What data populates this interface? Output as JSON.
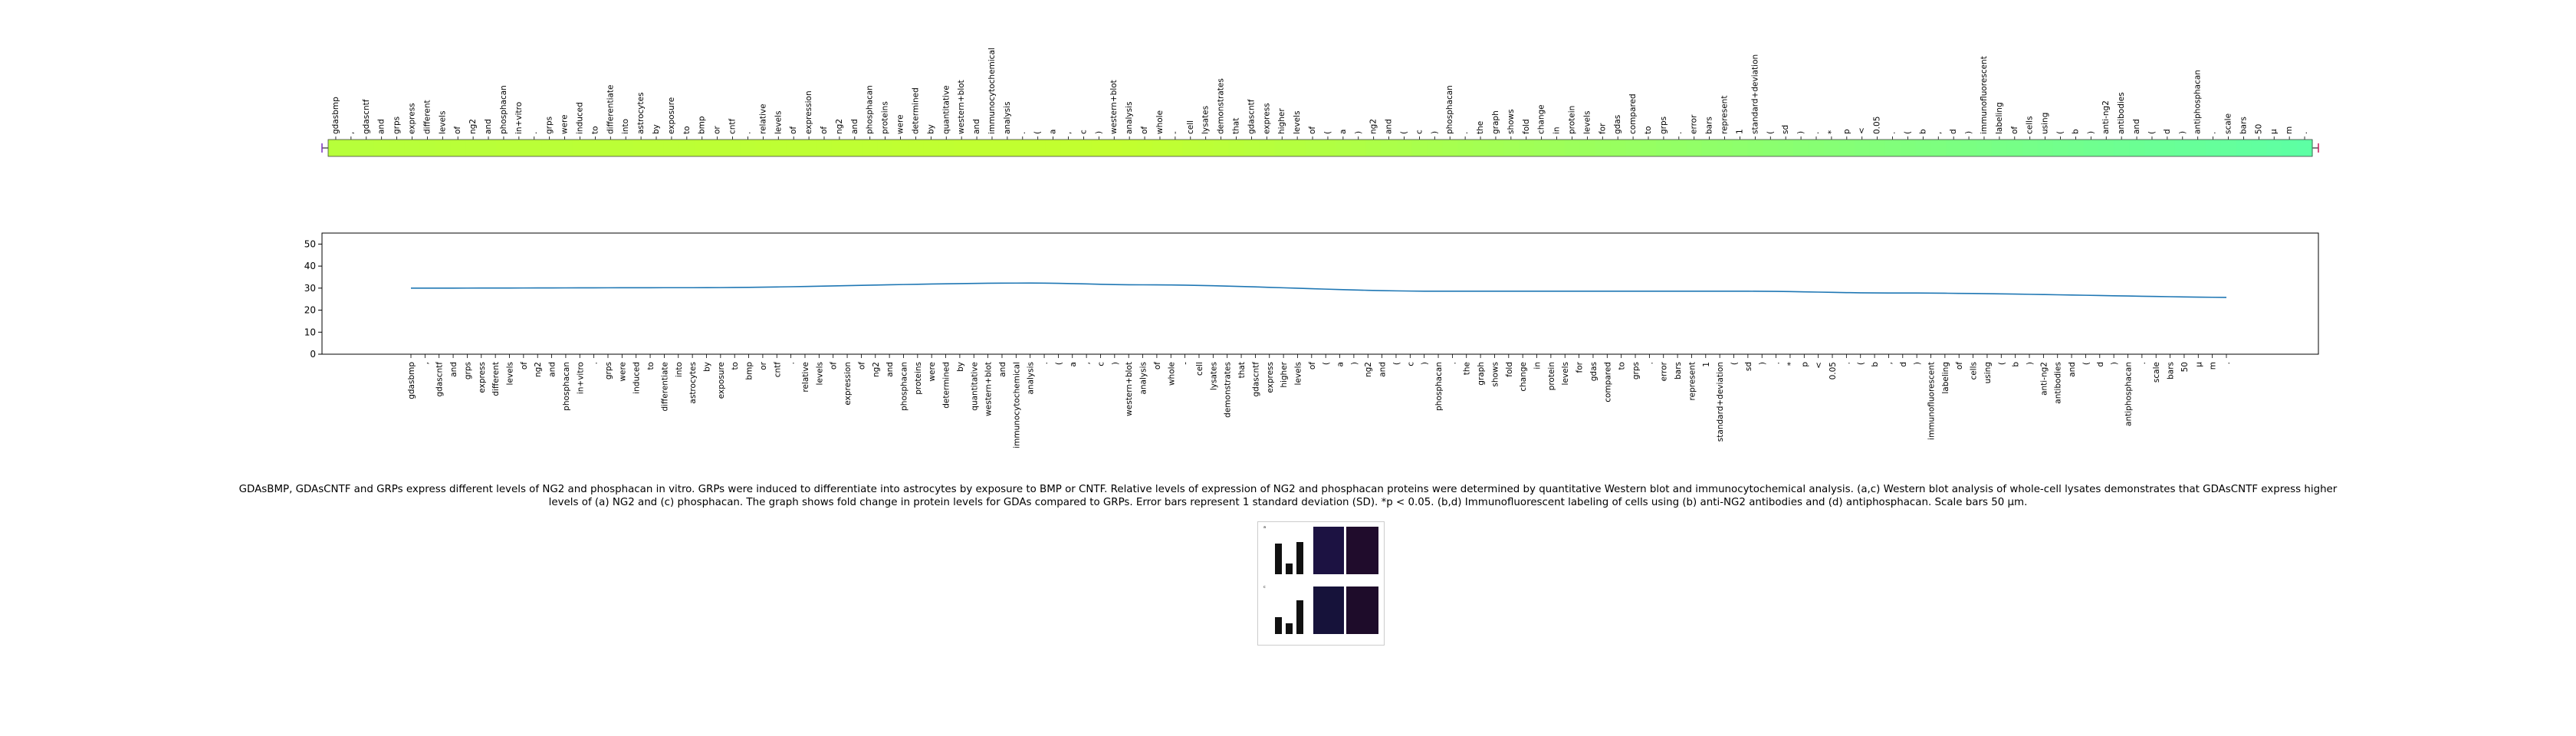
{
  "chart_data": [
    {
      "type": "heatmap",
      "x_tokens": [
        "gdasbmp",
        ",",
        "gdascntf",
        "and",
        "grps",
        "express",
        "different",
        "levels",
        "of",
        "ng2",
        "and",
        "phosphacan",
        "in+vitro",
        ".",
        "grps",
        "were",
        "induced",
        "to",
        "differentiate",
        "into",
        "astrocytes",
        "by",
        "exposure",
        "to",
        "bmp",
        "or",
        "cntf",
        ".",
        "relative",
        "levels",
        "of",
        "expression",
        "of",
        "ng2",
        "and",
        "phosphacan",
        "proteins",
        "were",
        "determined",
        "by",
        "quantitative",
        "western+blot",
        "and",
        "immunocytochemical",
        "analysis",
        ".",
        "(",
        "a",
        ",",
        "c",
        ")",
        "western+blot",
        "analysis",
        "of",
        "whole",
        "-",
        "cell",
        "lysates",
        "demonstrates",
        "that",
        "gdascntf",
        "express",
        "higher",
        "levels",
        "of",
        "(",
        "a",
        ")",
        "ng2",
        "and",
        "(",
        "c",
        ")",
        "phosphacan",
        ".",
        "the",
        "graph",
        "shows",
        "fold",
        "change",
        "in",
        "protein",
        "levels",
        "for",
        "gdas",
        "compared",
        "to",
        "grps",
        ".",
        "error",
        "bars",
        "represent",
        "1",
        "standard+deviation",
        "(",
        "sd",
        ")",
        ".",
        "*",
        "p",
        "<",
        "0.05",
        ".",
        "(",
        "b",
        ",",
        "d",
        ")",
        "immunofluorescent",
        "labeling",
        "of",
        "cells",
        "using",
        "(",
        "b",
        ")",
        "anti-ng2",
        "antibodies",
        "and",
        "(",
        "d",
        ")",
        "antiphosphacan",
        ".",
        "scale",
        "bars",
        "50",
        "µ",
        "m",
        "."
      ],
      "colormap_start": "#b7ff3a",
      "colormap_mid": "#c3ff2e",
      "colormap_end": "#5dffa4"
    },
    {
      "type": "line",
      "x": [
        "gdasbmp",
        ",",
        "gdascntf",
        "and",
        "grps",
        "express",
        "different",
        "levels",
        "of",
        "ng2",
        "and",
        "phosphacan",
        "in+vitro",
        ".",
        "grps",
        "were",
        "induced",
        "to",
        "differentiate",
        "into",
        "astrocytes",
        "by",
        "exposure",
        "to",
        "bmp",
        "or",
        "cntf",
        ".",
        "relative",
        "levels",
        "of",
        "expression",
        "of",
        "ng2",
        "and",
        "phosphacan",
        "proteins",
        "were",
        "determined",
        "by",
        "quantitative",
        "western+blot",
        "and",
        "immunocytochemical",
        "analysis",
        ".",
        "(",
        "a",
        ",",
        "c",
        ")",
        "western+blot",
        "analysis",
        "of",
        "whole",
        "-",
        "cell",
        "lysates",
        "demonstrates",
        "that",
        "gdascntf",
        "express",
        "higher",
        "levels",
        "of",
        "(",
        "a",
        ")",
        "ng2",
        "and",
        "(",
        "c",
        ")",
        "phosphacan",
        ".",
        "the",
        "graph",
        "shows",
        "fold",
        "change",
        "in",
        "protein",
        "levels",
        "for",
        "gdas",
        "compared",
        "to",
        "grps",
        ".",
        "error",
        "bars",
        "represent",
        "1",
        "standard+deviation",
        "(",
        "sd",
        ")",
        ".",
        "*",
        "p",
        "<",
        "0.05",
        ".",
        "(",
        "b",
        ",",
        "d",
        ")",
        "immunofluorescent",
        "labeling",
        "of",
        "cells",
        "using",
        "(",
        "b",
        ")",
        "anti-ng2",
        "antibodies",
        "and",
        "(",
        "d",
        ")",
        "antiphosphacan",
        ".",
        "scale",
        "bars",
        "50",
        "µ",
        "m",
        "."
      ],
      "y_keypoints": [
        [
          0,
          30
        ],
        [
          20,
          30.2
        ],
        [
          44,
          32.3
        ],
        [
          52,
          31.5
        ],
        [
          73,
          28.6
        ],
        [
          95,
          28.6
        ],
        [
          105,
          27.8
        ],
        [
          134,
          25.6
        ],
        [
          135,
          24.6
        ]
      ],
      "yticks": [
        0,
        10,
        20,
        30,
        40,
        50
      ],
      "ylim": [
        0,
        55
      ],
      "line_color": "#1f77b4"
    }
  ],
  "caption": "GDAsBMP, GDAsCNTF and GRPs express different levels of NG2 and phosphacan in vitro. GRPs were induced to differentiate into astrocytes by exposure to BMP or CNTF. Relative levels of expression of NG2 and phosphacan proteins were determined by quantitative Western blot and immunocytochemical analysis. (a,c) Western blot analysis of whole-cell lysates demonstrates that GDAsCNTF express higher levels of (a) NG2 and (c) phosphacan. The graph shows fold change in protein levels for GDAs compared to GRPs. Error bars represent 1 standard deviation (SD). *p < 0.05. (b,d) Immunofluorescent labeling of cells using (b) anti-NG2 antibodies and (d) antiphosphacan. Scale bars 50 μm.",
  "thumbnail": {
    "panel_labels": [
      "a",
      "b",
      "c",
      "d"
    ]
  }
}
